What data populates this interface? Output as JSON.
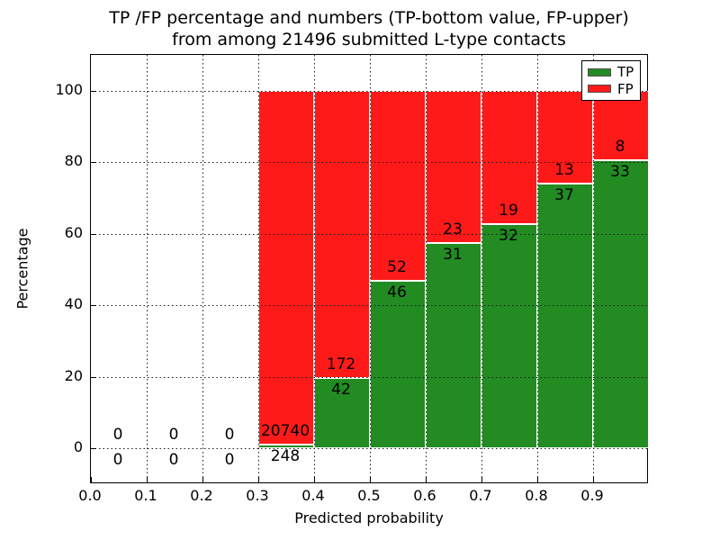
{
  "figure": {
    "title_line1": "TP /FP percentage and numbers (TP-bottom value, FP-upper)",
    "title_line2": "from among 21496 submitted L-type contacts"
  },
  "axes": {
    "xlabel": "Predicted probability",
    "ylabel": "Percentage"
  },
  "colors": {
    "tp_green": "#228B22",
    "fp_red": "#FF1A1A",
    "grid": "#1a1a1a",
    "background": "#ffffff"
  },
  "legend": {
    "position": "upper right",
    "items": [
      {
        "label": "TP",
        "color": "#228B22"
      },
      {
        "label": "FP",
        "color": "#FF1A1A"
      }
    ]
  },
  "chart_data": {
    "type": "bar",
    "stacked": true,
    "title": "TP /FP percentage and numbers (TP-bottom value, FP-upper) from among 21496 submitted L-type contacts",
    "xlabel": "Predicted probability",
    "ylabel": "Percentage",
    "xlim": [
      0.0,
      1.0
    ],
    "ylim": [
      -10,
      110
    ],
    "xticks": [
      0.0,
      0.1,
      0.2,
      0.3,
      0.4,
      0.5,
      0.6,
      0.7,
      0.8,
      0.9
    ],
    "yticks": [
      0,
      20,
      40,
      60,
      80,
      100
    ],
    "grid": true,
    "legend_position": "upper right",
    "total_submitted": 21496,
    "series": [
      {
        "name": "TP",
        "color": "#228B22",
        "stack_position": "bottom"
      },
      {
        "name": "FP",
        "color": "#FF1A1A",
        "stack_position": "top"
      }
    ],
    "bins": [
      {
        "range": [
          0.0,
          0.1
        ],
        "tp": 0,
        "fp": 0,
        "tp_pct": 0,
        "fp_pct": 0
      },
      {
        "range": [
          0.1,
          0.2
        ],
        "tp": 0,
        "fp": 0,
        "tp_pct": 0,
        "fp_pct": 0
      },
      {
        "range": [
          0.2,
          0.3
        ],
        "tp": 0,
        "fp": 0,
        "tp_pct": 0,
        "fp_pct": 0
      },
      {
        "range": [
          0.3,
          0.4
        ],
        "tp": 248,
        "fp": 20740,
        "tp_pct": 1.18,
        "fp_pct": 98.82
      },
      {
        "range": [
          0.4,
          0.5
        ],
        "tp": 42,
        "fp": 172,
        "tp_pct": 19.63,
        "fp_pct": 80.37
      },
      {
        "range": [
          0.5,
          0.6
        ],
        "tp": 46,
        "fp": 52,
        "tp_pct": 46.94,
        "fp_pct": 53.06
      },
      {
        "range": [
          0.6,
          0.7
        ],
        "tp": 31,
        "fp": 23,
        "tp_pct": 57.41,
        "fp_pct": 42.59
      },
      {
        "range": [
          0.7,
          0.8
        ],
        "tp": 32,
        "fp": 19,
        "tp_pct": 62.75,
        "fp_pct": 37.25
      },
      {
        "range": [
          0.8,
          0.9
        ],
        "tp": 37,
        "fp": 13,
        "tp_pct": 74.0,
        "fp_pct": 26.0
      },
      {
        "range": [
          0.9,
          1.0
        ],
        "tp": 33,
        "fp": 8,
        "tp_pct": 80.49,
        "fp_pct": 19.51
      }
    ]
  }
}
